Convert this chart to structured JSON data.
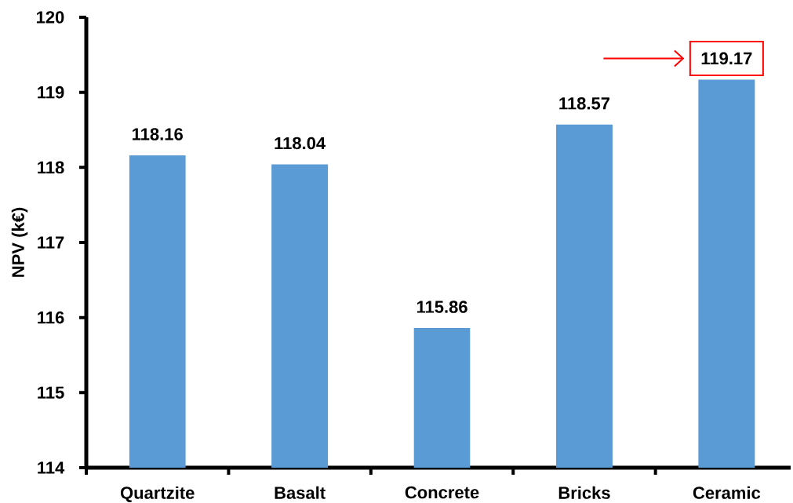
{
  "chart_data": {
    "type": "bar",
    "ylabel": "NPV (k€)",
    "categories": [
      "Quartzite",
      "Basalt",
      "Concrete",
      "Bricks",
      "Ceramic"
    ],
    "values": [
      118.16,
      118.04,
      115.86,
      118.57,
      119.17
    ],
    "color": "#5b9bd5",
    "ylim": [
      114,
      120
    ],
    "yticks": [
      114,
      115,
      116,
      117,
      118,
      119,
      120
    ],
    "data_labels": true
  }
}
